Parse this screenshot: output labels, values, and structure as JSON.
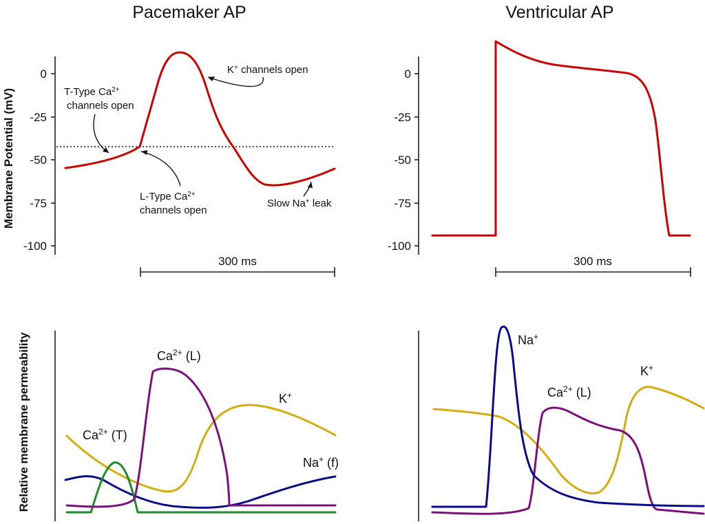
{
  "colors": {
    "membrane": "#cc0000",
    "calcium_l": "#7b0f7e",
    "calcium_t": "#1f8a2a",
    "potassium": "#d4ac0d",
    "sodium": "#0a0a8c",
    "axis": "#222222"
  },
  "chart_data": [
    {
      "type": "line",
      "title": "Pacemaker AP",
      "ylabel": "Membrane Potential (mV)",
      "ylim": [
        -100,
        10
      ],
      "yticks": [
        "0",
        "-25",
        "-50",
        "-75",
        "-100"
      ],
      "scale_bar": "300 ms",
      "threshold_mv": -42,
      "series": [
        {
          "x": [
            0,
            30,
            60,
            90,
            110,
            120,
            130,
            145,
            160,
            175,
            185,
            200,
            215,
            230,
            255,
            280,
            305,
            330,
            360,
            390
          ],
          "values": [
            -55,
            -53.5,
            -51,
            -48,
            -45,
            -42,
            -20,
            6,
            12,
            8,
            -8,
            -30,
            -45,
            -57,
            -65,
            -65,
            -63,
            -60,
            -57,
            -55
          ]
        }
      ],
      "annotations": [
        {
          "line1": "K",
          "sup1": "+",
          "line1_rest": " channels open",
          "line2": ""
        },
        {
          "line1": "T-Type Ca",
          "sup1": "2+",
          "line1_rest": "",
          "line2": "channels open"
        },
        {
          "line1": "L-Type Ca",
          "sup1": "2+",
          "line1_rest": "",
          "line2": "channels open"
        },
        {
          "line1": "Slow Na",
          "sup1": "+",
          "line1_rest": " leak",
          "line2": ""
        }
      ]
    },
    {
      "type": "line",
      "title": "Ventricular AP",
      "ylim": [
        -100,
        20
      ],
      "yticks": [
        "0",
        "-25",
        "-50",
        "-75",
        "-100"
      ],
      "scale_bar": "300 ms",
      "series": [
        {
          "x": [
            0,
            90,
            90,
            120,
            160,
            200,
            240,
            270,
            280,
            290,
            300,
            310,
            320,
            330,
            360,
            380
          ],
          "values": [
            -94,
            -94,
            19,
            12,
            7,
            4,
            2,
            0,
            -8,
            -30,
            -65,
            -94,
            -94,
            -94,
            -94,
            -94
          ]
        }
      ]
    },
    {
      "type": "line",
      "ylabel": "Relative membrane permeability",
      "series": [
        {
          "name": "Ca²⁺ (T)",
          "label": "Ca",
          "sup": "2+",
          "rest": " (T)"
        },
        {
          "name": "Ca²⁺ (L)",
          "label": "Ca",
          "sup": "2+",
          "rest": " (L)"
        },
        {
          "name": "K⁺",
          "label": "K",
          "sup": "+",
          "rest": ""
        },
        {
          "name": "Na⁺ (f)",
          "label": "Na",
          "sup": "+",
          "rest": " (f)"
        }
      ]
    },
    {
      "type": "line",
      "series": [
        {
          "name": "Na⁺",
          "label": "Na",
          "sup": "+",
          "rest": ""
        },
        {
          "name": "Ca²⁺ (L)",
          "label": "Ca",
          "sup": "2+",
          "rest": " (L)"
        },
        {
          "name": "K⁺",
          "label": "K",
          "sup": "+",
          "rest": ""
        }
      ]
    }
  ]
}
